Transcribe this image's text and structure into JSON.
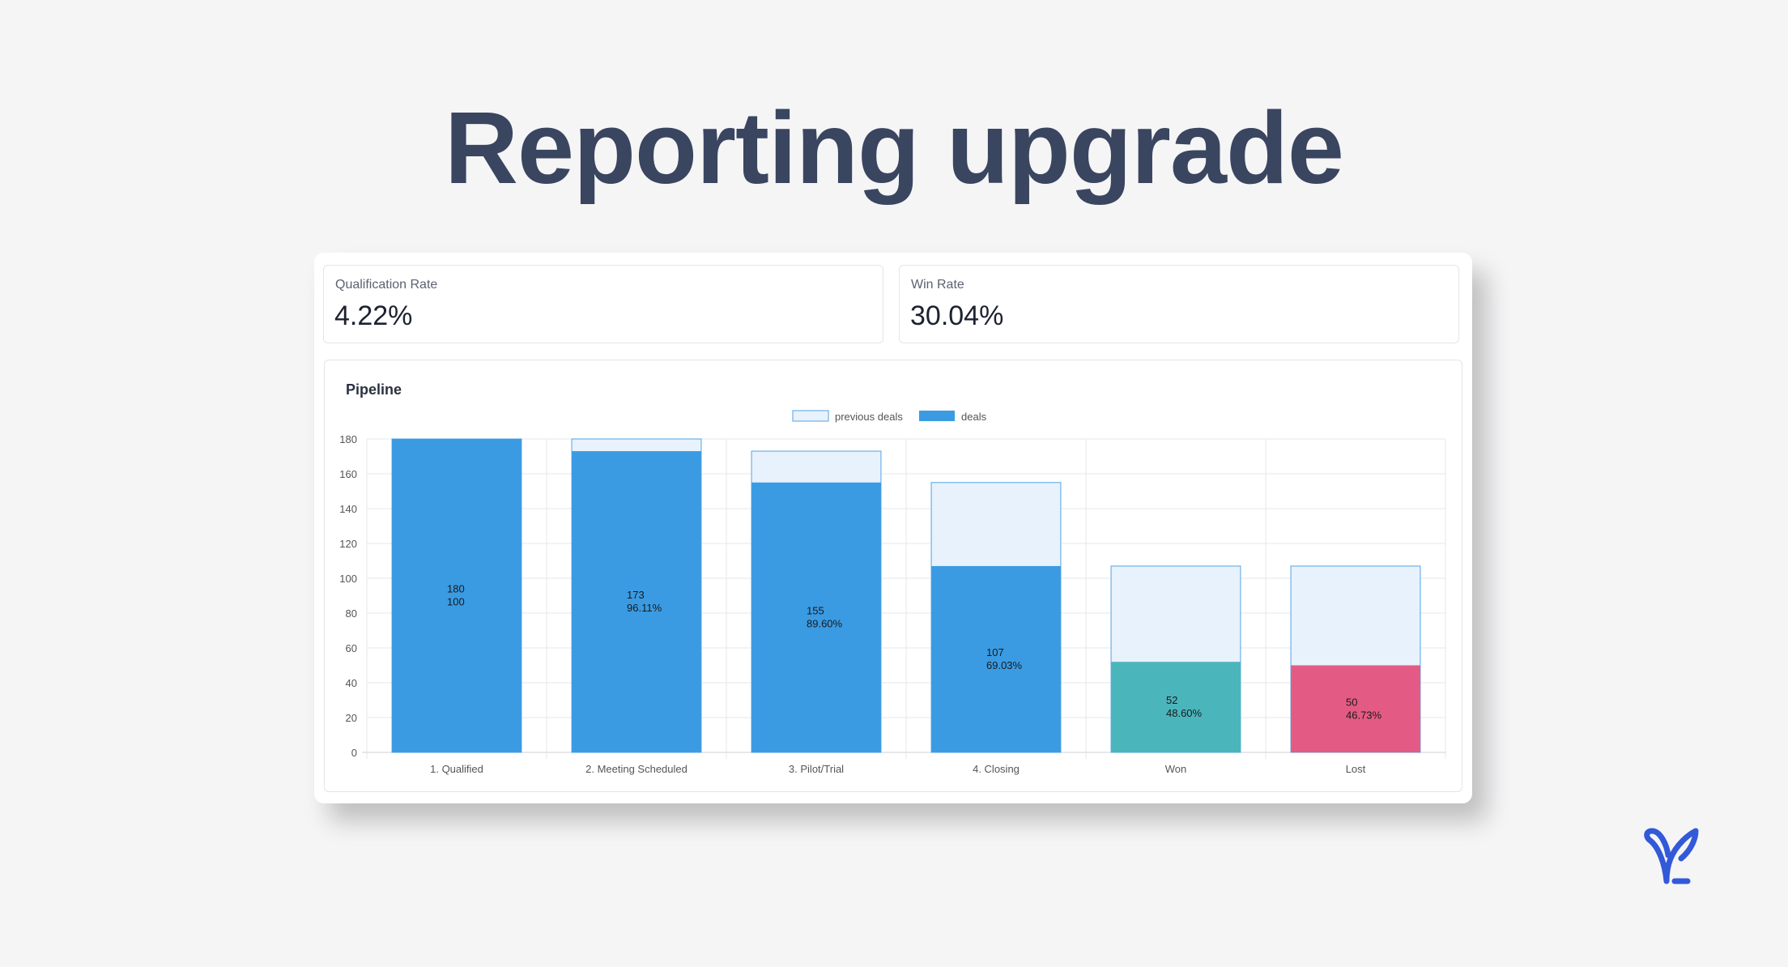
{
  "headline": "Reporting upgrade",
  "kpis": [
    {
      "label": "Qualification Rate",
      "value": "4.22%"
    },
    {
      "label": "Win Rate",
      "value": "30.04%"
    }
  ],
  "colors": {
    "deals": "#3a9be3",
    "previous_fill": "#e8f2fc",
    "previous_border": "#6db0ea",
    "won": "#4bb5bc",
    "lost": "#e35b84",
    "grid": "#e6e7ea",
    "logo": "#3259d8"
  },
  "logo_icon": "sprout-icon",
  "chart_data": {
    "type": "bar",
    "title": "Pipeline",
    "categories": [
      "1. Qualified",
      "2. Meeting Scheduled",
      "3. Pilot/Trial",
      "4. Closing",
      "Won",
      "Lost"
    ],
    "series": [
      {
        "name": "previous deals",
        "values": [
          180,
          180,
          173,
          155,
          107,
          107
        ]
      },
      {
        "name": "deals",
        "values": [
          180,
          173,
          155,
          107,
          52,
          50
        ]
      }
    ],
    "bar_labels": [
      [
        "180",
        "100"
      ],
      [
        "173",
        "96.11%"
      ],
      [
        "155",
        "89.60%"
      ],
      [
        "107",
        "69.03%"
      ],
      [
        "52",
        "48.60%"
      ],
      [
        "50",
        "46.73%"
      ]
    ],
    "bar_colors": [
      "#3a9be3",
      "#3a9be3",
      "#3a9be3",
      "#3a9be3",
      "#4bb5bc",
      "#e35b84"
    ],
    "ylim": [
      0,
      180
    ],
    "yticks": [
      0,
      20,
      40,
      60,
      80,
      100,
      120,
      140,
      160,
      180
    ],
    "legend_position": "top-center",
    "grid": true
  }
}
